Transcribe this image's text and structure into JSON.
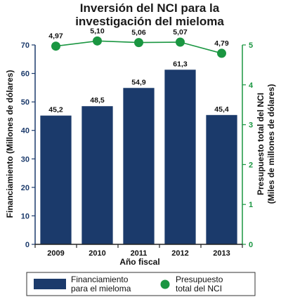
{
  "chart_data": {
    "type": "bar",
    "title_lines": [
      "Inversión del NCI para la",
      "investigación del mieloma"
    ],
    "categories": [
      "2009",
      "2010",
      "2011",
      "2012",
      "2013"
    ],
    "xlabel": "Año fiscal",
    "ylabel": "Financiamiento (Millones de dólares)",
    "ylabel2_lines": [
      "Presupuesto total del NCI",
      "(Miles de millones de dólares)"
    ],
    "ylim": [
      0,
      70
    ],
    "ylim2": [
      0,
      5
    ],
    "yticks": [
      "0",
      "10",
      "20",
      "30",
      "40",
      "50",
      "60",
      "70"
    ],
    "yticks2": [
      "0",
      "1",
      "2",
      "3",
      "4",
      "5"
    ],
    "series": [
      {
        "name": "Financiamiento para el mieloma",
        "kind": "bar",
        "axis": "left",
        "color": "#1b3a6b",
        "values": [
          45.2,
          48.5,
          54.9,
          61.3,
          45.4
        ],
        "labels": [
          "45,2",
          "48,5",
          "54,9",
          "61,3",
          "45,4"
        ]
      },
      {
        "name": "Presupuesto total del NCI",
        "kind": "line",
        "axis": "right",
        "color": "#1a9641",
        "values": [
          4.97,
          5.1,
          5.06,
          5.07,
          4.79
        ],
        "labels": [
          "4,97",
          "5,10",
          "5,06",
          "5,07",
          "4,79"
        ]
      }
    ],
    "legend": {
      "position": "bottom",
      "bar_label_lines": [
        "Financiamiento",
        "para el mieloma"
      ],
      "line_label_lines": [
        "Presupuesto",
        "total del NCI"
      ]
    },
    "colors": {
      "left_axis": "#1b3a6b",
      "right_axis": "#1a9641"
    },
    "grid": false
  }
}
